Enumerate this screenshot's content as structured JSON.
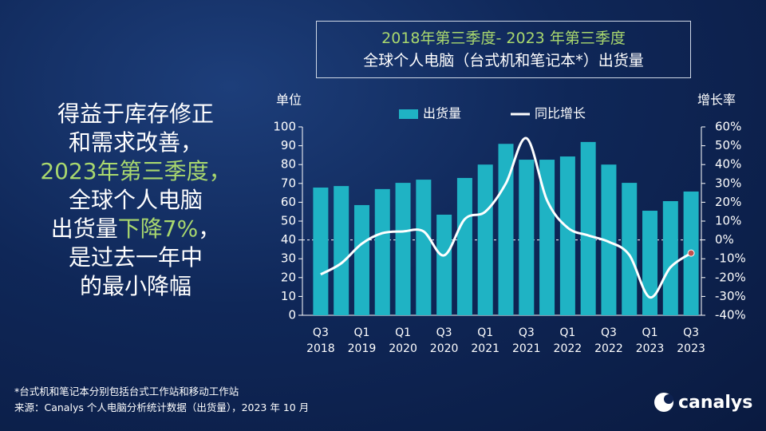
{
  "headline": [
    [
      {
        "text": "得益于库存修正",
        "color": "#ffffff"
      }
    ],
    [
      {
        "text": "和需求改善，",
        "color": "#ffffff"
      }
    ],
    [
      {
        "text": "2023年第三季度，",
        "color": "#a9d86e"
      }
    ],
    [
      {
        "text": "全球个人电脑",
        "color": "#ffffff"
      }
    ],
    [
      {
        "text": "出货量",
        "color": "#ffffff"
      },
      {
        "text": "下降7%",
        "color": "#a9d86e"
      },
      {
        "text": "，",
        "color": "#ffffff"
      }
    ],
    [
      {
        "text": "是过去一年中",
        "color": "#ffffff"
      }
    ],
    [
      {
        "text": "的最小降幅",
        "color": "#ffffff"
      }
    ]
  ],
  "footnotes": [
    "*台式机和笔记本分别包括台式工作站和移动工作站",
    "来源：Canalys 个人电脑分析统计数据（出货量），2023 年 10 月"
  ],
  "logo": "canalys",
  "chart_data": {
    "type": "bar_line",
    "title": "2018年第三季度- 2023 年第三季度",
    "subtitle": "全球个人电脑（台式机和笔记本*）出货量",
    "y_label": "单位",
    "y2_label": "增长率",
    "categories": [
      "Q3 2018",
      null,
      "Q1 2019",
      null,
      "Q1 2020",
      null,
      "Q3 2020",
      null,
      "Q1 2021",
      null,
      "Q3 2021",
      null,
      "Q1 2022",
      null,
      "Q3 2022",
      null,
      "Q1 2023",
      null,
      "Q3 2023"
    ],
    "series": [
      {
        "name": "出货量",
        "color": "#1fb3c4",
        "kind": "bar",
        "values": [
          67.8,
          68.6,
          58.5,
          67,
          70.3,
          72,
          53.4,
          72.9,
          80,
          91,
          82.6,
          82.6,
          84.3,
          92,
          80,
          70.3,
          55.5,
          60.6,
          65.7
        ]
      },
      {
        "name": "同比增长",
        "color": "#ffffff",
        "kind": "line",
        "axis": "y2",
        "values": [
          -18.3,
          -12.4,
          -2,
          3.6,
          4.5,
          4.5,
          -8.2,
          11,
          15,
          30,
          54,
          21,
          6.5,
          2.4,
          -1,
          -8,
          -30.5,
          -14.5,
          -7
        ]
      }
    ],
    "ylim": [
      0,
      100
    ],
    "yticks": [
      0,
      10,
      20,
      30,
      40,
      50,
      60,
      70,
      80,
      90,
      100
    ],
    "y2lim": [
      -40,
      60
    ],
    "y2ticks": [
      {
        "value": -40,
        "label": "-40%"
      },
      {
        "value": -30,
        "label": "-30%"
      },
      {
        "value": -20,
        "label": "-20%"
      },
      {
        "value": -10,
        "label": "-10%"
      },
      {
        "value": 0,
        "label": "0%"
      },
      {
        "value": 10,
        "label": "10%"
      },
      {
        "value": 20,
        "label": "20%"
      },
      {
        "value": 30,
        "label": "30%"
      },
      {
        "value": 40,
        "label": "40%"
      },
      {
        "value": 50,
        "label": "50%"
      },
      {
        "value": 60,
        "label": "60%"
      }
    ],
    "zero_line": true,
    "smooth": true,
    "end_marker_color": "#c0504d"
  }
}
